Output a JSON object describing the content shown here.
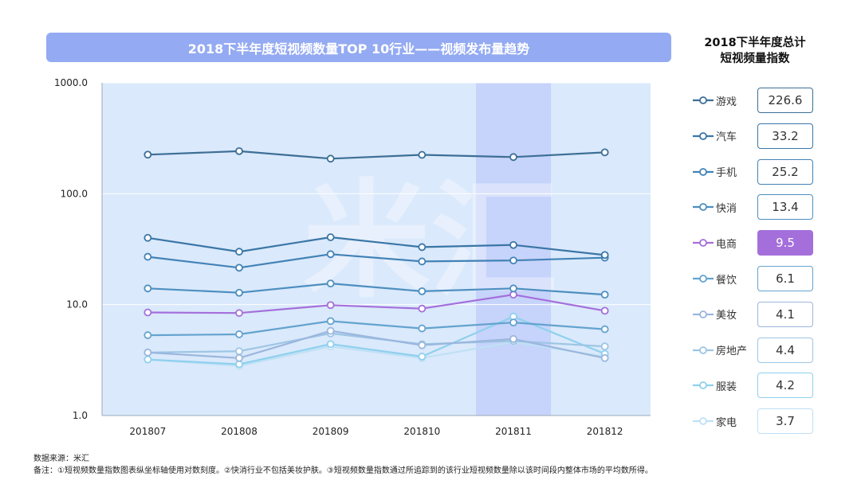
{
  "title": "2018下半年度短视频数量TOP  10行业——视频发布量趋势",
  "side_panel": {
    "title_line1": "2018下半年度总计",
    "title_line2": "短视频量指数"
  },
  "watermark": "米汇",
  "chart_data": {
    "type": "line",
    "y_scale": "log",
    "ylim": [
      1.0,
      1000.0
    ],
    "y_ticks": [
      "1.0",
      "10.0",
      "100.0",
      "1000.0"
    ],
    "x": [
      "201807",
      "201808",
      "201809",
      "201810",
      "201811",
      "201812"
    ],
    "highlight_category": "201811",
    "series": [
      {
        "name": "游戏",
        "total": "226.6",
        "color": "#3d6f96",
        "values": [
          225,
          242,
          207,
          224,
          214,
          236
        ]
      },
      {
        "name": "汽车",
        "total": "33.2",
        "color": "#3a76a6",
        "values": [
          40,
          30,
          40.5,
          33,
          34.5,
          28
        ]
      },
      {
        "name": "手机",
        "total": "25.2",
        "color": "#4282b6",
        "values": [
          27,
          21.5,
          28.5,
          24.5,
          25,
          26.5
        ]
      },
      {
        "name": "快消",
        "total": "13.4",
        "color": "#4d8fc0",
        "values": [
          14,
          12.8,
          15.5,
          13.2,
          14,
          12.3
        ]
      },
      {
        "name": "电商",
        "total": "9.5",
        "color": "#a46fdb",
        "values": [
          8.5,
          8.4,
          9.9,
          9.2,
          12.3,
          8.8
        ]
      },
      {
        "name": "餐饮",
        "total": "6.1",
        "color": "#64a3cf",
        "values": [
          5.3,
          5.4,
          7.1,
          6.1,
          6.9,
          6.0
        ]
      },
      {
        "name": "美妆",
        "total": "4.1",
        "color": "#9bb6dd",
        "values": [
          3.7,
          3.3,
          5.8,
          4.3,
          4.9,
          3.3
        ]
      },
      {
        "name": "房地产",
        "total": "4.4",
        "color": "#9dc5e4",
        "values": [
          3.7,
          3.8,
          5.5,
          4.4,
          4.7,
          4.2
        ]
      },
      {
        "name": "服装",
        "total": "4.2",
        "color": "#8fd0ee",
        "values": [
          3.2,
          2.9,
          4.4,
          3.4,
          7.8,
          3.6
        ]
      },
      {
        "name": "家电",
        "total": "3.7",
        "color": "#bfe0f5",
        "values": [
          3.2,
          2.8,
          4.2,
          3.3,
          4.6,
          3.4
        ]
      }
    ]
  },
  "footnotes": {
    "source": "数据来源：米汇",
    "note": "备注：①短视频数量指数图表纵坐标轴使用对数刻度。②快消行业不包括美妆护肤。③短视频数量指数通过所追踪到的该行业短视频数量除以该时间段内整体市场的平均数所得。"
  }
}
